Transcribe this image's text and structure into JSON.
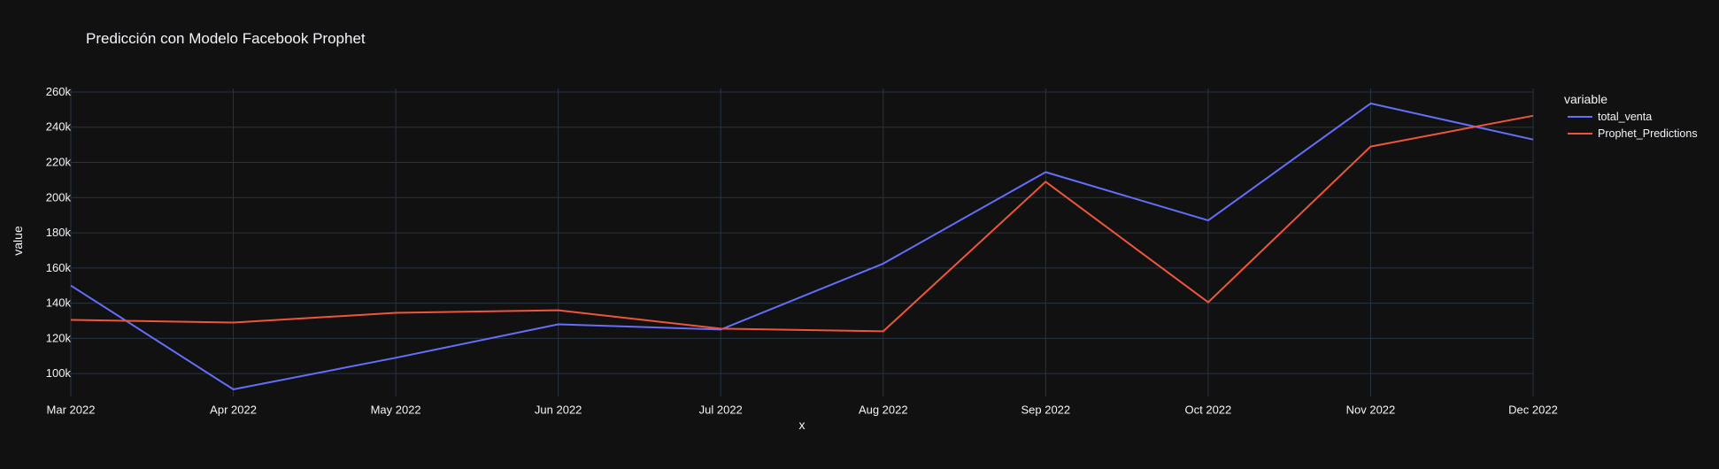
{
  "chart_data": {
    "type": "line",
    "title": "Predicción con Modelo Facebook Prophet",
    "xlabel": "x",
    "ylabel": "value",
    "x": [
      "Mar 2022",
      "Apr 2022",
      "May 2022",
      "Jun 2022",
      "Jul 2022",
      "Aug 2022",
      "Sep 2022",
      "Oct 2022",
      "Nov 2022",
      "Dec 2022"
    ],
    "x_ticks": [
      "Mar 2022",
      "Apr 2022",
      "May 2022",
      "Jun 2022",
      "Jul 2022",
      "Aug 2022",
      "Sep 2022",
      "Oct 2022",
      "Nov 2022",
      "Dec 2022"
    ],
    "y_ticks": [
      100000,
      120000,
      140000,
      160000,
      180000,
      200000,
      220000,
      240000,
      260000
    ],
    "y_tick_labels": [
      "100k",
      "120k",
      "140k",
      "160k",
      "180k",
      "200k",
      "220k",
      "240k",
      "260k"
    ],
    "ylim": [
      87000,
      262000
    ],
    "grid": true,
    "legend": {
      "title": "variable",
      "placement": "top-right-outside"
    },
    "series": [
      {
        "name": "total_venta",
        "color": "#636EFA",
        "values": [
          150000,
          91000,
          109000,
          128000,
          125000,
          162500,
          214500,
          187000,
          253500,
          233000
        ]
      },
      {
        "name": "Prophet_Predictions",
        "color": "#EF553B",
        "values": [
          130500,
          129000,
          134500,
          136000,
          125500,
          124000,
          209000,
          140500,
          229000,
          246500
        ]
      }
    ]
  },
  "colors": {
    "background": "#111111",
    "grid": "#283442",
    "text": "#f2f5fa"
  }
}
